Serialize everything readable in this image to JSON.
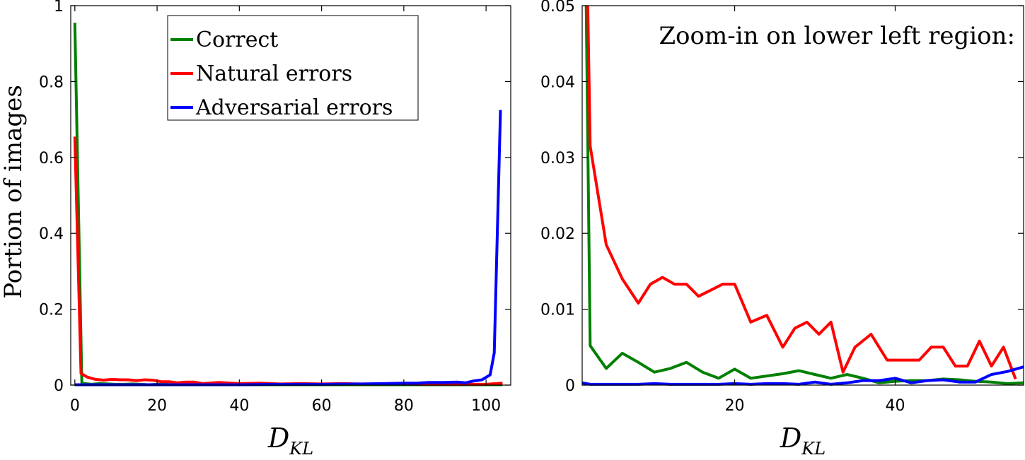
{
  "chart_data": [
    {
      "type": "line",
      "ylabel": "Portion of images",
      "xlabel": "D",
      "xlabel_sub": "KL",
      "xlim": [
        -1,
        106
      ],
      "ylim": [
        0,
        1
      ],
      "xticks": [
        0,
        20,
        40,
        60,
        80,
        100
      ],
      "yticks": [
        0,
        0.2,
        0.4,
        0.6,
        0.8,
        1
      ],
      "ytick_labels": [
        "0",
        "0.2",
        "0.4",
        "0.6",
        "0.8",
        "1"
      ],
      "legend": {
        "position": "top-center"
      },
      "series": [
        {
          "name": "Correct",
          "color": "#008000",
          "x": [
            0,
            1.7,
            4,
            6,
            8,
            10,
            12,
            14,
            16,
            18,
            20,
            22,
            24,
            26,
            28,
            30,
            35,
            40,
            50,
            60,
            70,
            80,
            90,
            100,
            104
          ],
          "y": [
            0.955,
            0.005,
            0.002,
            0.004,
            0.003,
            0.002,
            0.002,
            0.003,
            0.002,
            0.001,
            0.002,
            0.002,
            0.001,
            0.001,
            0.001,
            0.001,
            0.001,
            0.001,
            0.001,
            0.001,
            0.001,
            0.001,
            0.001,
            0.001,
            0.001
          ]
        },
        {
          "name": "Natural errors",
          "color": "#ff0000",
          "x": [
            0,
            1.5,
            3,
            5,
            7,
            9,
            11,
            13,
            15,
            17,
            19,
            21,
            23,
            25,
            27,
            29,
            31,
            35,
            40,
            45,
            50,
            55,
            60,
            65,
            70,
            75,
            80,
            85,
            90,
            95,
            100,
            104
          ],
          "y": [
            0.655,
            0.031,
            0.021,
            0.015,
            0.013,
            0.015,
            0.014,
            0.014,
            0.012,
            0.014,
            0.013,
            0.009,
            0.009,
            0.006,
            0.008,
            0.008,
            0.004,
            0.007,
            0.004,
            0.005,
            0.003,
            0.004,
            0.003,
            0.004,
            0.003,
            0.003,
            0.003,
            0.002,
            0.002,
            0.002,
            0.002,
            0.005
          ]
        },
        {
          "name": "Adversarial errors",
          "color": "#0000ff",
          "x": [
            0,
            10,
            20,
            30,
            40,
            50,
            60,
            70,
            75,
            80,
            83,
            86,
            90,
            93,
            95,
            97,
            99,
            101,
            102,
            103.5
          ],
          "y": [
            0.001,
            0.001,
            0.001,
            0.001,
            0.001,
            0.002,
            0.002,
            0.003,
            0.004,
            0.005,
            0.005,
            0.007,
            0.007,
            0.008,
            0.006,
            0.011,
            0.014,
            0.027,
            0.085,
            0.725
          ]
        }
      ]
    },
    {
      "type": "line",
      "annotation": "Zoom-in on lower left region:",
      "xlabel": "D",
      "xlabel_sub": "KL",
      "xlim": [
        1,
        56
      ],
      "ylim": [
        0,
        0.05
      ],
      "xticks": [
        20,
        40
      ],
      "yticks": [
        0,
        0.01,
        0.02,
        0.03,
        0.04,
        0.05
      ],
      "ytick_labels": [
        "0",
        "0.01",
        "0.02",
        "0.03",
        "0.04",
        "0.05"
      ],
      "series": [
        {
          "name": "Correct",
          "color": "#008000",
          "x": [
            1.5,
            2,
            4,
            6,
            8,
            10,
            12,
            14,
            16,
            18,
            20,
            22,
            24,
            26,
            28,
            30,
            32,
            34,
            36,
            38,
            40,
            42,
            44,
            46,
            48,
            50,
            52,
            54,
            56
          ],
          "y": [
            0.05,
            0.0052,
            0.0022,
            0.0042,
            0.003,
            0.0017,
            0.0022,
            0.003,
            0.0017,
            0.0009,
            0.0021,
            0.0009,
            0.0012,
            0.0015,
            0.0019,
            0.0014,
            0.0009,
            0.0014,
            0.0009,
            0.0003,
            0.0005,
            0.0006,
            0.0006,
            0.0008,
            0.0007,
            0.0005,
            0.0004,
            0.0002,
            0.0003
          ]
        },
        {
          "name": "Natural errors",
          "color": "#ff0000",
          "x": [
            1.7,
            2,
            4,
            6,
            8,
            9.5,
            11,
            12.5,
            14,
            15.5,
            17,
            18.5,
            20,
            22,
            24,
            26,
            27.5,
            29,
            30.5,
            32,
            33.5,
            35,
            37,
            39,
            41,
            43,
            44.5,
            46,
            47.5,
            49,
            50.5,
            52,
            53.5,
            55
          ],
          "y": [
            0.05,
            0.0315,
            0.0185,
            0.014,
            0.0108,
            0.0133,
            0.0142,
            0.0133,
            0.0133,
            0.0117,
            0.0125,
            0.0133,
            0.0133,
            0.0083,
            0.0092,
            0.005,
            0.0075,
            0.0083,
            0.0067,
            0.0083,
            0.0017,
            0.005,
            0.0067,
            0.0033,
            0.0033,
            0.0033,
            0.005,
            0.005,
            0.0025,
            0.0025,
            0.0058,
            0.0025,
            0.005,
            0.0008
          ]
        },
        {
          "name": "Adversarial errors",
          "color": "#0000ff",
          "x": [
            1,
            2,
            4,
            6,
            8,
            10,
            12,
            14,
            16,
            18,
            20,
            22,
            24,
            26,
            28,
            30,
            32,
            34,
            36,
            38,
            40,
            42,
            44,
            46,
            48,
            50,
            52,
            54,
            56
          ],
          "y": [
            0.0003,
            0.0001,
            0.0001,
            0.0001,
            0.0001,
            0.0002,
            0.0001,
            0.0001,
            0.0001,
            0.0001,
            0.0002,
            0.0001,
            0.0002,
            0.0002,
            0.0001,
            0.0004,
            0.0001,
            0.0003,
            0.0006,
            0.0006,
            0.0009,
            0.0003,
            0.0006,
            0.0007,
            0.0004,
            0.0004,
            0.0014,
            0.0018,
            0.0024
          ]
        }
      ]
    }
  ]
}
